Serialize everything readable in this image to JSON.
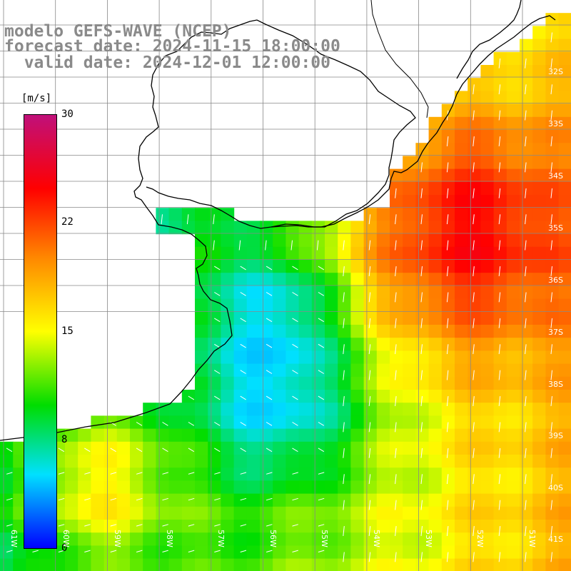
{
  "title": {
    "line1": "modelo GEFS-WAVE (NCEP)",
    "line2": "forecast date: 2024-11-15 18:00:00",
    "line3": "  valid date: 2024-12-01 12:00:00"
  },
  "colorbar": {
    "unit": "[m/s]",
    "ticks": [
      "30",
      "22",
      "15",
      "8",
      "0"
    ],
    "colors": [
      "#0000ff",
      "#00e0ff",
      "#00dd00",
      "#ffff00",
      "#ff8800",
      "#ff0000",
      "#c0107a"
    ]
  },
  "latitude_labels": [
    "32S",
    "33S",
    "34S",
    "35S",
    "36S",
    "37S",
    "38S",
    "39S",
    "40S",
    "41S"
  ],
  "longitude_labels": [
    "61W",
    "60W",
    "59W",
    "58W",
    "57W",
    "56W",
    "55W",
    "54W",
    "53W",
    "52W",
    "51W"
  ],
  "colors": {
    "land": "#ffffff",
    "grid": "#888888",
    "coast": "#000000",
    "arrow": "#ffffff"
  }
}
